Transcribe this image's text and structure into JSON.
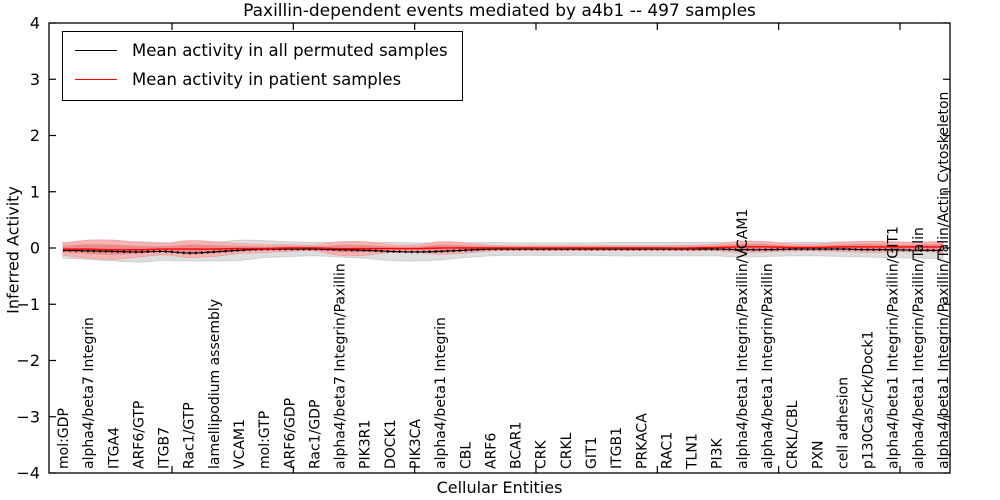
{
  "chart_data": {
    "type": "line",
    "title": "Paxillin-dependent events mediated by a4b1 -- 497 samples",
    "xlabel": "Cellular Entities",
    "ylabel": "Inferred Activity",
    "ylim": [
      -4,
      4
    ],
    "yticks": [
      -4,
      -3,
      -2,
      -1,
      0,
      1,
      2,
      3,
      4
    ],
    "grid": false,
    "legend_position": "upper left",
    "legend": [
      {
        "label": "Mean activity in all permuted samples",
        "color": "#000000"
      },
      {
        "label": "Mean activity in patient samples",
        "color": "#ff0000"
      }
    ],
    "categories": [
      "mol:GDP",
      "alpha4/beta7 Integrin",
      "ITGA4",
      "ARF6/GTP",
      "ITGB7",
      "Rac1/GTP",
      "lamellipodium assembly",
      "VCAM1",
      "mol:GTP",
      "ARF6/GDP",
      "Rac1/GDP",
      "alpha4/beta7 Integrin/Paxillin",
      "PIK3R1",
      "DOCK1",
      "PIK3CA",
      "alpha4/beta1 Integrin",
      "CBL",
      "ARF6",
      "BCAR1",
      "CRK",
      "CRKL",
      "GIT1",
      "ITGB1",
      "PRKACA",
      "RAC1",
      "TLN1",
      "PI3K",
      "alpha4/beta1 Integrin/Paxillin/VCAM1",
      "alpha4/beta1 Integrin/Paxillin",
      "CRKL/CBL",
      "PXN",
      "cell adhesion",
      "p130Cas/Crk/Dock1",
      "alpha4/beta1 Integrin/Paxillin/GIT1",
      "alpha4/beta1 Integrin/Paxillin/Talin",
      "alpha4/beta1 Integrin/Paxillin/Talin/Actin Cytoskeleton"
    ],
    "series": [
      {
        "name": "Mean activity in all permuted samples",
        "role": "mean-line",
        "color": "#000000",
        "values": [
          -0.04,
          -0.05,
          -0.06,
          -0.07,
          -0.06,
          -0.09,
          -0.07,
          -0.04,
          -0.02,
          -0.02,
          -0.02,
          -0.03,
          -0.04,
          -0.06,
          -0.07,
          -0.06,
          -0.04,
          -0.02,
          -0.02,
          -0.02,
          -0.02,
          -0.02,
          -0.02,
          -0.02,
          -0.02,
          -0.02,
          -0.02,
          -0.03,
          -0.03,
          -0.02,
          -0.02,
          -0.02,
          -0.03,
          -0.03,
          -0.04,
          -0.04
        ]
      },
      {
        "name": "Mean activity in patient samples",
        "role": "mean-line",
        "color": "#ff0000",
        "values": [
          -0.02,
          -0.02,
          -0.03,
          -0.03,
          -0.02,
          -0.02,
          -0.02,
          -0.01,
          -0.01,
          0.0,
          0.0,
          -0.01,
          -0.01,
          -0.01,
          -0.01,
          0.0,
          0.0,
          0.0,
          0.0,
          0.0,
          0.0,
          0.0,
          0.0,
          0.0,
          0.0,
          0.0,
          0.01,
          0.02,
          0.02,
          0.01,
          0.01,
          0.02,
          0.02,
          0.02,
          0.02,
          0.02
        ]
      },
      {
        "name": "Permuted samples spread (half-width)",
        "role": "band",
        "center_series": 0,
        "color": "#dedede",
        "edge_color": "#c9c9c9",
        "half_widths": [
          0.14,
          0.15,
          0.17,
          0.18,
          0.16,
          0.14,
          0.16,
          0.18,
          0.15,
          0.13,
          0.12,
          0.13,
          0.14,
          0.16,
          0.16,
          0.15,
          0.13,
          0.12,
          0.11,
          0.11,
          0.11,
          0.11,
          0.12,
          0.12,
          0.12,
          0.12,
          0.12,
          0.13,
          0.12,
          0.12,
          0.12,
          0.13,
          0.13,
          0.14,
          0.14,
          0.15
        ]
      },
      {
        "name": "Patient samples spread (half-width)",
        "role": "band",
        "center_series": 1,
        "color": "#f5b4b4",
        "core_color": "#eb8b8b",
        "edge_color": "#ef9f9f",
        "half_widths": [
          0.11,
          0.16,
          0.17,
          0.13,
          0.1,
          0.15,
          0.13,
          0.09,
          0.07,
          0.06,
          0.05,
          0.12,
          0.12,
          0.07,
          0.06,
          0.11,
          0.09,
          0.05,
          0.04,
          0.04,
          0.04,
          0.04,
          0.04,
          0.04,
          0.04,
          0.05,
          0.06,
          0.1,
          0.09,
          0.06,
          0.06,
          0.08,
          0.1,
          0.09,
          0.08,
          0.1
        ]
      }
    ]
  }
}
